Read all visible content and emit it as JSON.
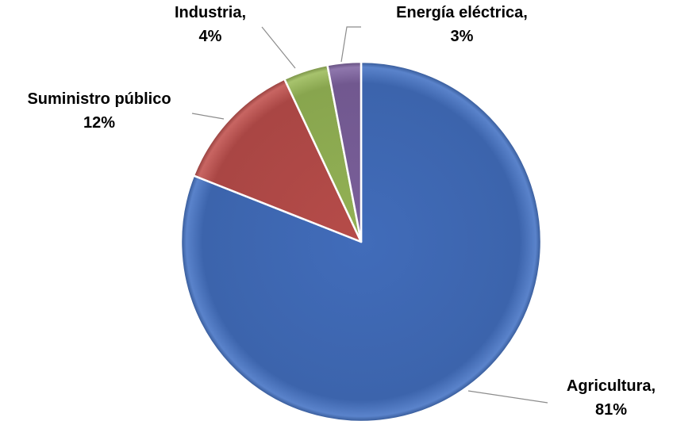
{
  "chart_data": {
    "type": "pie",
    "title": "",
    "legend": "none",
    "start_angle_deg": 0,
    "direction": "clockwise",
    "slices": [
      {
        "category": "Agricultura",
        "value": 81,
        "label_lines": [
          "Agricultura,",
          "81%"
        ],
        "color": "#4472C4"
      },
      {
        "category": "Suministro público",
        "value": 12,
        "label_lines": [
          "Suministro público",
          "12%"
        ],
        "color": "#C0504D"
      },
      {
        "category": "Industria",
        "value": 4,
        "label_lines": [
          "Industria,",
          "4%"
        ],
        "color": "#9BBB59"
      },
      {
        "category": "Energía eléctrica",
        "value": 3,
        "label_lines": [
          "Energía eléctrica,",
          "3%"
        ],
        "color": "#8064A2"
      }
    ]
  }
}
